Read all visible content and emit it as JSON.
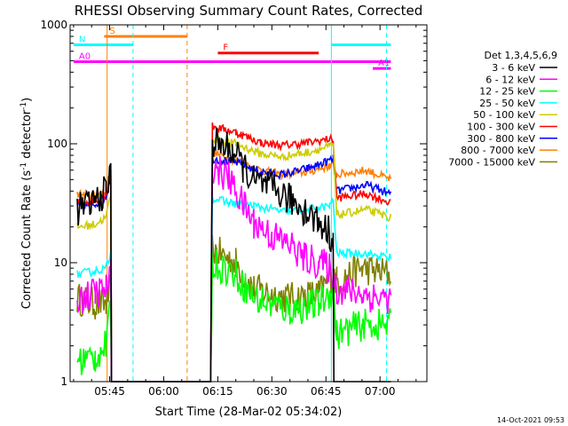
{
  "chart_data": {
    "type": "line",
    "title": "RHESSI Observing Summary Count Rates, Corrected",
    "xlabel": "Start Time (28-Mar-02 05:34:02)",
    "ylabel": "Corrected Count Rate (s⁻¹ detector⁻¹)",
    "ylabel_parts": [
      "Corrected Count Rate (s",
      "-1",
      " detector",
      "-1",
      ")"
    ],
    "yscale": "log",
    "ylim": [
      1,
      1000
    ],
    "xlim": [
      "05:34:02",
      "07:13:00"
    ],
    "xtick_labels": [
      "05:45",
      "06:00",
      "06:15",
      "06:30",
      "06:45",
      "07:00"
    ],
    "xtick_minutes": [
      345,
      360,
      375,
      390,
      405,
      420
    ],
    "ytick_labels": [
      "1",
      "10",
      "100",
      "1000"
    ],
    "ytick_values": [
      1,
      10,
      100,
      1000
    ],
    "legend_title": "Det 1,3,4,5,6,9",
    "legend_position": "right",
    "series": [
      {
        "name": "3 - 6 keV",
        "color": "#000000",
        "points": [
          [
            336,
            28
          ],
          [
            341,
            33
          ],
          [
            344,
            40
          ],
          [
            345.3,
            55
          ],
          [
            345.5,
            1
          ],
          [
            373,
            1
          ],
          [
            373.5,
            105
          ],
          [
            379,
            88
          ],
          [
            382,
            65
          ],
          [
            385,
            48
          ],
          [
            390,
            42
          ],
          [
            395,
            34
          ],
          [
            399,
            28
          ],
          [
            403,
            22
          ],
          [
            406,
            18
          ],
          [
            407,
            15
          ],
          [
            407.2,
            1
          ],
          [
            423,
            1
          ]
        ]
      },
      {
        "name": "6 - 12 keV",
        "color": "#ff00ff",
        "points": [
          [
            336,
            5
          ],
          [
            341,
            5.5
          ],
          [
            344,
            6
          ],
          [
            345.3,
            8
          ],
          [
            345.5,
            1
          ],
          [
            373,
            1
          ],
          [
            373.5,
            65
          ],
          [
            378,
            52
          ],
          [
            381,
            35
          ],
          [
            385,
            22
          ],
          [
            390,
            17
          ],
          [
            395,
            14
          ],
          [
            399,
            11
          ],
          [
            403,
            10
          ],
          [
            406,
            9
          ],
          [
            407,
            8
          ],
          [
            408,
            6
          ],
          [
            415,
            5.5
          ],
          [
            420,
            5
          ],
          [
            423,
            5
          ]
        ]
      },
      {
        "name": "12 - 25 keV",
        "color": "#00ff00",
        "points": [
          [
            336,
            1.5
          ],
          [
            341,
            1.6
          ],
          [
            344,
            2
          ],
          [
            345.3,
            4
          ],
          [
            345.5,
            1
          ],
          [
            373,
            1
          ],
          [
            373.5,
            10
          ],
          [
            380,
            8
          ],
          [
            385,
            5
          ],
          [
            395,
            4
          ],
          [
            403,
            4.5
          ],
          [
            407,
            6
          ],
          [
            408,
            2.5
          ],
          [
            415,
            3
          ],
          [
            423,
            3
          ]
        ]
      },
      {
        "name": "25 - 50 keV",
        "color": "#00ffff",
        "points": [
          [
            336,
            8
          ],
          [
            341,
            8.5
          ],
          [
            344,
            9
          ],
          [
            345.3,
            12
          ],
          [
            345.5,
            1
          ],
          [
            373,
            1
          ],
          [
            373.5,
            35
          ],
          [
            378,
            32
          ],
          [
            385,
            30
          ],
          [
            393,
            27
          ],
          [
            400,
            28
          ],
          [
            406,
            30
          ],
          [
            407,
            33
          ],
          [
            408,
            12
          ],
          [
            415,
            12
          ],
          [
            423,
            11
          ]
        ]
      },
      {
        "name": "50 - 100 keV",
        "color": "#cccc00",
        "points": [
          [
            336,
            20
          ],
          [
            341,
            21
          ],
          [
            344,
            24
          ],
          [
            345.3,
            38
          ],
          [
            345.5,
            1
          ],
          [
            373,
            1
          ],
          [
            373.5,
            110
          ],
          [
            380,
            100
          ],
          [
            387,
            82
          ],
          [
            393,
            78
          ],
          [
            400,
            85
          ],
          [
            406,
            95
          ],
          [
            407,
            98
          ],
          [
            408,
            25
          ],
          [
            416,
            28
          ],
          [
            423,
            24
          ]
        ]
      },
      {
        "name": "100 - 300 keV",
        "color": "#ff0000",
        "points": [
          [
            336,
            32
          ],
          [
            341,
            33
          ],
          [
            344,
            38
          ],
          [
            345.3,
            60
          ],
          [
            345.5,
            1
          ],
          [
            373,
            1
          ],
          [
            373.5,
            140
          ],
          [
            380,
            125
          ],
          [
            387,
            102
          ],
          [
            393,
            97
          ],
          [
            400,
            102
          ],
          [
            406,
            110
          ],
          [
            407,
            105
          ],
          [
            408,
            35
          ],
          [
            416,
            38
          ],
          [
            423,
            32
          ]
        ]
      },
      {
        "name": "300 - 800 keV",
        "color": "#0000ff",
        "points": [
          [
            336,
            30
          ],
          [
            341,
            31
          ],
          [
            344,
            36
          ],
          [
            345.3,
            55
          ],
          [
            345.5,
            1
          ],
          [
            373,
            1
          ],
          [
            373.5,
            75
          ],
          [
            380,
            70
          ],
          [
            387,
            58
          ],
          [
            393,
            55
          ],
          [
            400,
            62
          ],
          [
            406,
            72
          ],
          [
            407,
            75
          ],
          [
            408,
            40
          ],
          [
            416,
            45
          ],
          [
            423,
            38
          ]
        ]
      },
      {
        "name": "800 - 7000 keV",
        "color": "#ff8000",
        "points": [
          [
            336,
            38
          ],
          [
            341,
            36
          ],
          [
            344,
            40
          ],
          [
            345.3,
            62
          ],
          [
            345.5,
            1
          ],
          [
            373,
            1
          ],
          [
            373.5,
            85
          ],
          [
            380,
            72
          ],
          [
            387,
            60
          ],
          [
            393,
            55
          ],
          [
            400,
            58
          ],
          [
            406,
            65
          ],
          [
            407,
            68
          ],
          [
            408,
            55
          ],
          [
            416,
            60
          ],
          [
            423,
            50
          ]
        ]
      },
      {
        "name": "7000 - 15000 keV",
        "color": "#808000",
        "points": [
          [
            336,
            5
          ],
          [
            341,
            4.5
          ],
          [
            344,
            4.5
          ],
          [
            345.3,
            6
          ],
          [
            345.5,
            1
          ],
          [
            373,
            1
          ],
          [
            373.5,
            13
          ],
          [
            380,
            10
          ],
          [
            385,
            6
          ],
          [
            395,
            5
          ],
          [
            403,
            5.5
          ],
          [
            407,
            8
          ],
          [
            408,
            7
          ],
          [
            415,
            9
          ],
          [
            423,
            8
          ]
        ]
      }
    ],
    "annotations": {
      "flags": [
        {
          "label": "S",
          "color": "#ff8000",
          "from": 343.5,
          "to": 366.5,
          "level": 800
        },
        {
          "label": "N",
          "color": "#00ffff",
          "from": 335,
          "to": 351.5,
          "level": 680
        },
        {
          "label": "F",
          "color": "#ff0000",
          "from": 375,
          "to": 403,
          "level": 580
        },
        {
          "label": "A0",
          "color": "#ff00ff",
          "from": 335,
          "to": 423,
          "level": 490
        },
        {
          "label": "A1",
          "color": "#ff00ff",
          "from": 418,
          "to": 423,
          "level": 430
        },
        {
          "label": "",
          "color": "#00ffff",
          "from": 406.5,
          "to": 423,
          "level": 680
        }
      ],
      "vlines": [
        {
          "minute": 344.3,
          "color": "#ff8000",
          "style": "solid"
        },
        {
          "minute": 351.5,
          "color": "#00ffff",
          "style": "dashed"
        },
        {
          "minute": 366.5,
          "color": "#ff8000",
          "style": "dashed"
        },
        {
          "minute": 406.5,
          "color": "#00ffff",
          "style": "solid"
        },
        {
          "minute": 421.8,
          "color": "#00ffff",
          "style": "dashed"
        }
      ]
    },
    "grid": false
  },
  "footer": {
    "timestamp": "14-Oct-2021 09:53"
  }
}
